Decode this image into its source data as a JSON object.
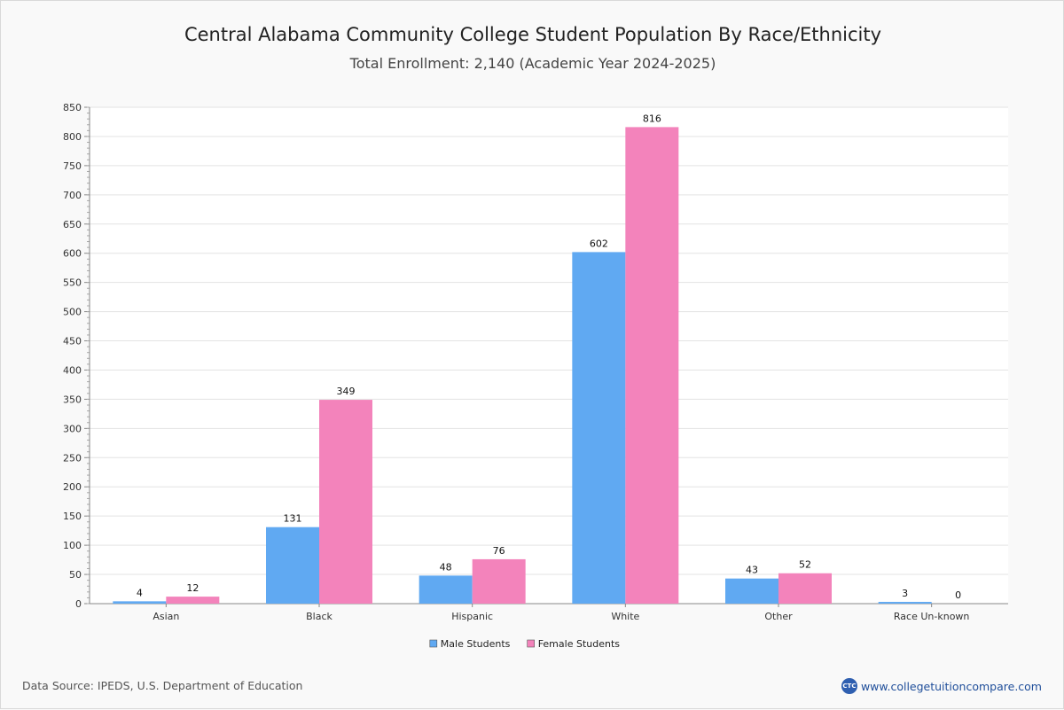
{
  "page": {
    "source": "Data Source: IPEDS, U.S. Department of Education",
    "brand": "www.collegetuitioncompare.com",
    "brand_logo": "CTC"
  },
  "chart_data": {
    "type": "bar",
    "title": "Central Alabama Community College Student Population By Race/Ethnicity",
    "subtitle": "Total Enrollment: 2,140 (Academic Year 2024-2025)",
    "categories": [
      "Asian",
      "Black",
      "Hispanic",
      "White",
      "Other",
      "Race Un-known"
    ],
    "series": [
      {
        "name": "Male Students",
        "color": "#60a9f2",
        "values": [
          4,
          131,
          48,
          602,
          43,
          3
        ]
      },
      {
        "name": "Female Students",
        "color": "#f383bb",
        "values": [
          12,
          349,
          76,
          816,
          52,
          0
        ]
      }
    ],
    "ylim": [
      0,
      850
    ],
    "ytick_step": 50,
    "xlabel": "",
    "ylabel": "",
    "grid": true,
    "legend": "bottom-center"
  }
}
